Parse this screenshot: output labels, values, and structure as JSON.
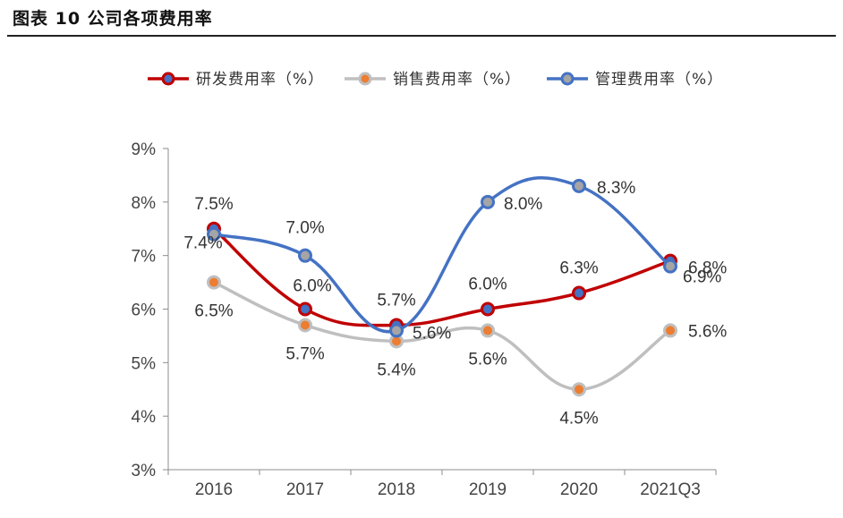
{
  "figure": {
    "title": "图表 10 公司各项费用率"
  },
  "chart_data": {
    "type": "line",
    "categories": [
      "2016",
      "2017",
      "2018",
      "2019",
      "2020",
      "2021Q3"
    ],
    "ylim": [
      3,
      9
    ],
    "yticks": [
      "3%",
      "4%",
      "5%",
      "6%",
      "7%",
      "8%",
      "9%"
    ],
    "legend_position": "top",
    "series": [
      {
        "name": "研发费用率（%）",
        "color": "#c00000",
        "marker_fill": "#4472c4",
        "values": [
          7.5,
          6.0,
          5.7,
          6.0,
          6.3,
          6.9
        ],
        "labels": [
          "7.5%",
          "6.0%",
          "5.7%",
          "6.0%",
          "6.3%",
          "6.9%"
        ]
      },
      {
        "name": "销售费用率（%）",
        "color": "#bfbfbf",
        "marker_fill": "#ed7d31",
        "values": [
          6.5,
          5.7,
          5.4,
          5.6,
          4.5,
          5.6
        ],
        "labels": [
          "6.5%",
          "5.7%",
          "5.4%",
          "5.6%",
          "4.5%",
          "5.6%"
        ]
      },
      {
        "name": "管理费用率（%）",
        "color": "#4472c4",
        "marker_fill": "#a5a5a5",
        "values": [
          7.4,
          7.0,
          5.6,
          8.0,
          8.3,
          6.8
        ],
        "labels": [
          "7.4%",
          "7.0%",
          "5.6%",
          "8.0%",
          "8.3%",
          "6.8%"
        ]
      }
    ]
  }
}
